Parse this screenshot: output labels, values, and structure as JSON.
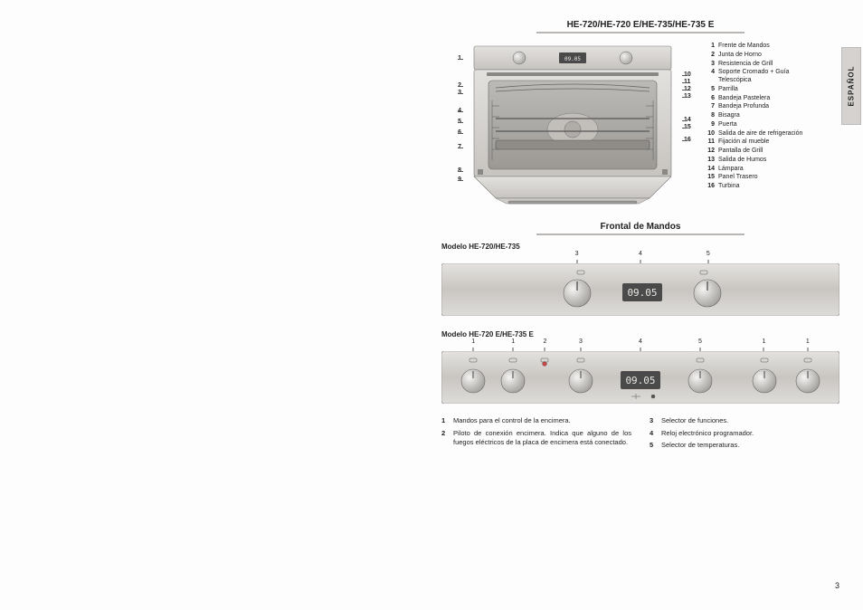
{
  "page_number": "3",
  "side_tab": "ESPAÑOL",
  "header_title": "HE-720/HE-720 E/HE-735/HE-735 E",
  "oven": {
    "left_callouts": [
      "1",
      "2",
      "3",
      "4",
      "5",
      "6",
      "7",
      "8",
      "9"
    ],
    "right_callouts": [
      "10",
      "11",
      "12",
      "13",
      "14",
      "15",
      "16"
    ],
    "legend": [
      {
        "n": "1",
        "t": "Frente de Mandos"
      },
      {
        "n": "2",
        "t": "Junta de Horno"
      },
      {
        "n": "3",
        "t": "Resistencia de Grill"
      },
      {
        "n": "4",
        "t": "Soporte Cromado + Guía Telescópica"
      },
      {
        "n": "5",
        "t": "Parrilla"
      },
      {
        "n": "6",
        "t": "Bandeja Pastelera"
      },
      {
        "n": "7",
        "t": "Bandeja Profunda"
      },
      {
        "n": "8",
        "t": "Bisagra"
      },
      {
        "n": "9",
        "t": "Puerta"
      },
      {
        "n": "10",
        "t": "Salida de aire de refrigeración"
      },
      {
        "n": "11",
        "t": "Fijación al mueble"
      },
      {
        "n": "12",
        "t": "Pantalla de Grill"
      },
      {
        "n": "13",
        "t": "Salida de Humos"
      },
      {
        "n": "14",
        "t": "Lámpara"
      },
      {
        "n": "15",
        "t": "Panel Trasero"
      },
      {
        "n": "16",
        "t": "Turbina"
      }
    ]
  },
  "frontal_title": "Frontal de Mandos",
  "model_a": "Modelo HE-720/HE-735",
  "model_a_callouts": [
    "3",
    "4",
    "5"
  ],
  "model_b": "Modelo HE-720 E/HE-735 E",
  "model_b_callouts": [
    "1",
    "1",
    "2",
    "3",
    "4",
    "5",
    "1",
    "1"
  ],
  "display_time": "09.05",
  "bottom_legend": {
    "col1": [
      {
        "n": "1",
        "t": "Mandos para el control de la encimera."
      },
      {
        "n": "2",
        "t": "Piloto de conexión encimera. Indica que alguno de los fuegos eléctricos de la placa de encimera está conectado."
      }
    ],
    "col2": [
      {
        "n": "3",
        "t": "Selector de funciones."
      },
      {
        "n": "4",
        "t": "Reloj electrónico programador."
      },
      {
        "n": "5",
        "t": "Selector de temperaturas."
      }
    ]
  },
  "colors": {
    "panel_light": "#d9d7d4",
    "panel_dark": "#b9b6b3",
    "oven_body": "#cfccc8",
    "oven_cavity": "#a8a5a1",
    "display_bg": "#4a4a4a",
    "display_fg": "#e8e6e2",
    "rule": "#b8b5b2"
  }
}
